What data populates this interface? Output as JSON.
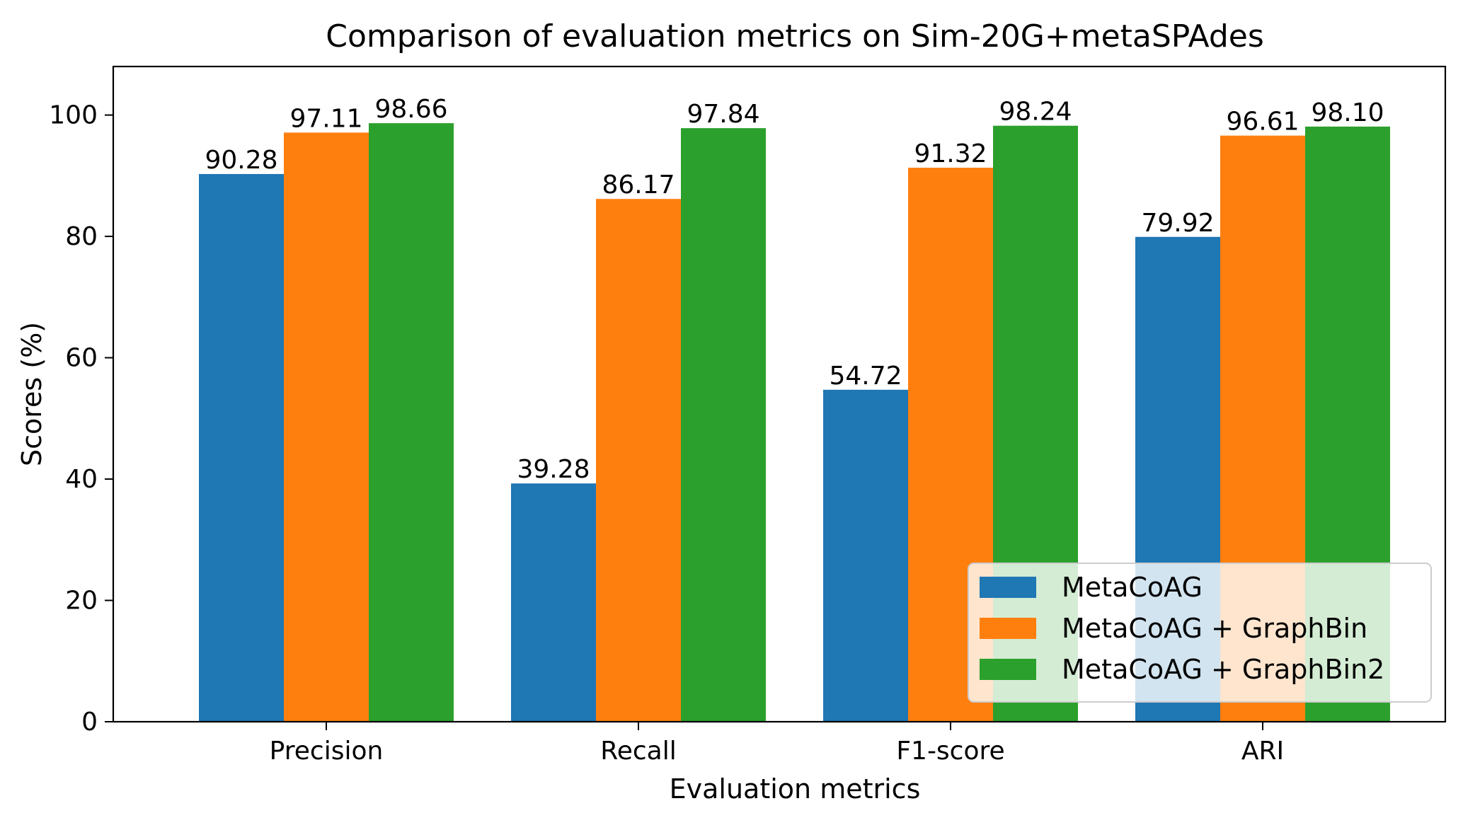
{
  "chart_data": {
    "type": "bar",
    "title": "Comparison of evaluation metrics on Sim-20G+metaSPAdes",
    "xlabel": "Evaluation metrics",
    "ylabel": "Scores (%)",
    "categories": [
      "Precision",
      "Recall",
      "F1-score",
      "ARI"
    ],
    "ylim": [
      0,
      108
    ],
    "yticks": [
      0,
      20,
      40,
      60,
      80,
      100
    ],
    "ytick_labels": [
      "0",
      "20",
      "40",
      "60",
      "80",
      "100"
    ],
    "grid": false,
    "legend_position": "bottom-right",
    "series": [
      {
        "name": "MetaCoAG",
        "color": "#1f77b4",
        "values": [
          90.28,
          39.28,
          54.72,
          79.92
        ],
        "labels": [
          "90.28",
          "39.28",
          "54.72",
          "79.92"
        ]
      },
      {
        "name": "MetaCoAG + GraphBin",
        "color": "#ff7f0e",
        "values": [
          97.11,
          86.17,
          91.32,
          96.61
        ],
        "labels": [
          "97.11",
          "86.17",
          "91.32",
          "96.61"
        ]
      },
      {
        "name": "MetaCoAG + GraphBin2",
        "color": "#2ca02c",
        "values": [
          98.66,
          97.84,
          98.24,
          98.1
        ],
        "labels": [
          "98.66",
          "97.84",
          "98.24",
          "98.10"
        ]
      }
    ]
  }
}
